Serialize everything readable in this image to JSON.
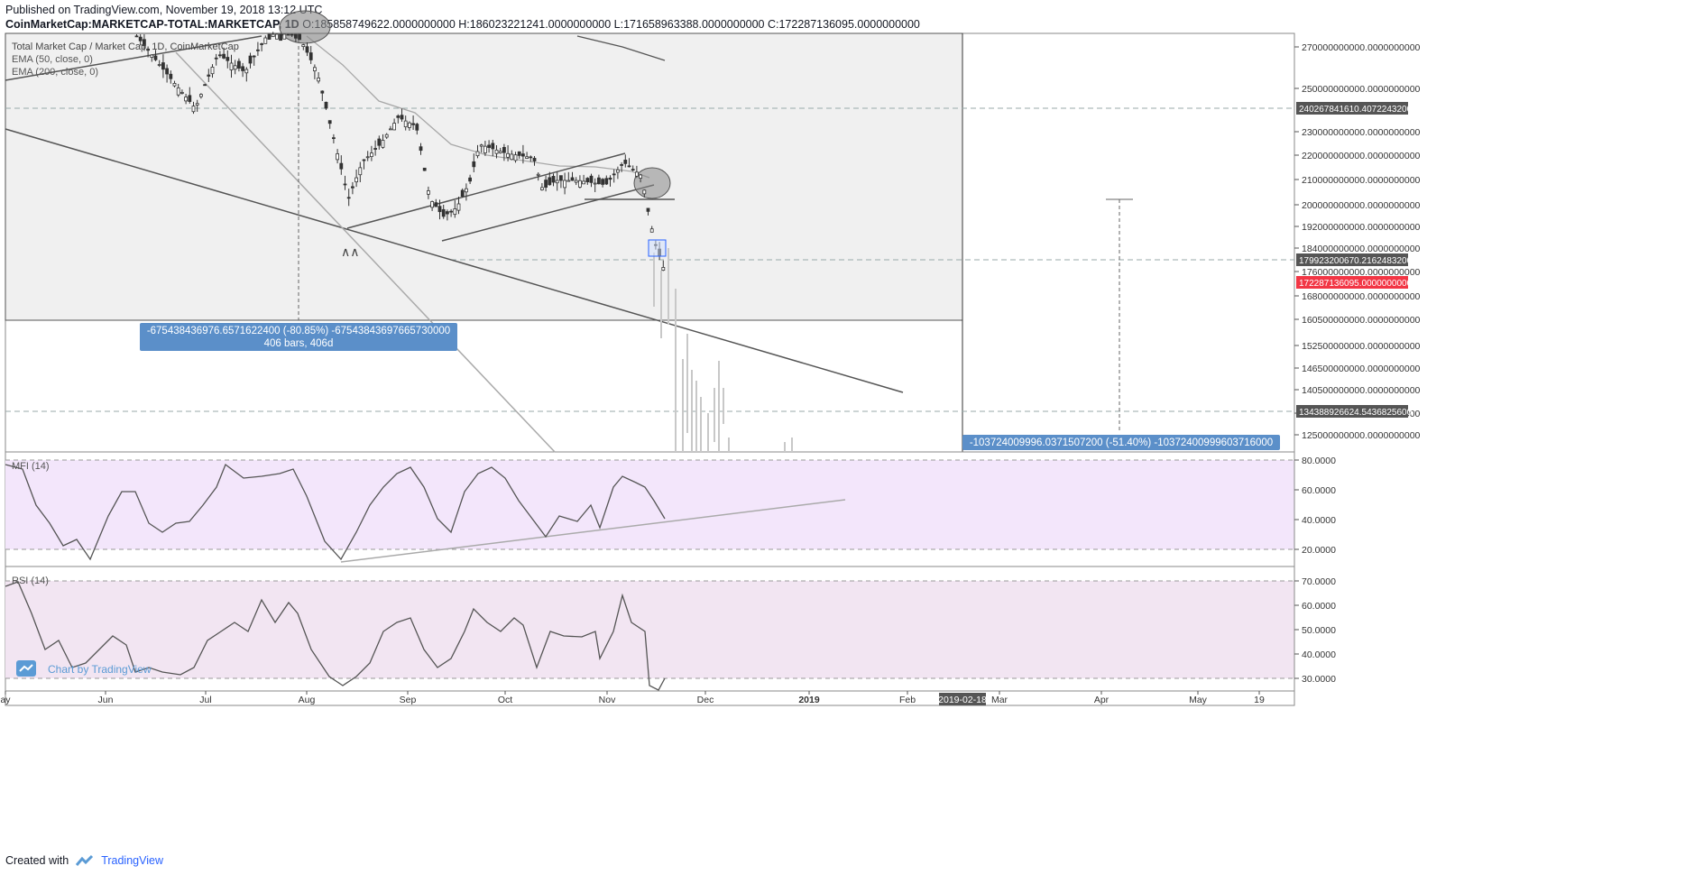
{
  "header": {
    "published": "Published on TradingView.com, November 19, 2018 13:12 UTC",
    "symbol": "CoinMarketCap:MARKETCAP-TOTAL:MARKETCAP, 1D",
    "ohlc": "O:185858749622.0000000000 H:186023221241.0000000000 L:171658963388.0000000000 C:172287136095.0000000000"
  },
  "legend": {
    "title": "Total Market Cap / Market Cap, 1D, CoinMarketCap",
    "ema50": "EMA (50, close, 0)",
    "ema200": "EMA (200, close, 0)"
  },
  "price_axis": {
    "ticks": [
      "270000000000.0000000000",
      "250000000000.0000000000",
      "230000000000.0000000000",
      "220000000000.0000000000",
      "210000000000.0000000000",
      "200000000000.0000000000",
      "192000000000.0000000000",
      "184000000000.0000000000",
      "176000000000.0000000000",
      "168000000000.0000000000",
      "160500000000.0000000000",
      "152500000000.0000000000",
      "146500000000.0000000000",
      "140500000000.0000000000",
      "132500000000.0000000000",
      "125000000000.0000000000"
    ],
    "labels": [
      {
        "text": "240267841610.4072243200",
        "kind": "level"
      },
      {
        "text": "179923200670.2162483200",
        "kind": "level"
      },
      {
        "text": "172287136095.0000000000",
        "kind": "last"
      },
      {
        "text": "134388926624.5436825600",
        "kind": "level"
      }
    ]
  },
  "measure_boxes": {
    "left": {
      "line1": "-675438436976.6571622400 (-80.85%) -675438436976657 30000",
      "line1_exact": "-675438436976.6571622400 (-80.85%) -67543843697665730000",
      "line2": "406 bars, 406d"
    },
    "right": {
      "line1": "-103724009996.0371507200 (-51.40%) -10372400999603716000"
    }
  },
  "mfi": {
    "label": "MFI (14)",
    "ticks": [
      "80.0000",
      "60.0000",
      "40.0000",
      "20.0000"
    ]
  },
  "rsi": {
    "label": "RSI (14)",
    "ticks": [
      "70.0000",
      "60.0000",
      "50.0000",
      "40.0000",
      "30.0000"
    ]
  },
  "time_axis": {
    "labels": [
      "ay",
      "Jun",
      "Jul",
      "Aug",
      "Sep",
      "Oct",
      "Nov",
      "Dec",
      "2019",
      "Feb",
      "2019-02-18",
      "Mar",
      "Apr",
      "May",
      "19"
    ]
  },
  "watermark": "Chart by TradingView",
  "footer": {
    "created": "Created with",
    "brand": "TradingView"
  },
  "colors": {
    "last_price": "#f23645",
    "measure": "#5b8fc9",
    "mfi_bg": "#f3e5f5",
    "rsi_bg": "#f1e4f0",
    "line": "#555555"
  },
  "chart_data": {
    "type": "candlestick",
    "title": "Total Market Cap / Market Cap, 1D, CoinMarketCap",
    "interval": "1D",
    "last_close": 172287136095,
    "approx_close_series": {
      "dates": [
        "Jun",
        "Jul",
        "Aug",
        "Sep",
        "Oct",
        "Nov",
        "Nov 19"
      ],
      "values": [
        270000000000,
        275000000000,
        250000000000,
        198000000000,
        218000000000,
        208000000000,
        172287136095
      ]
    },
    "indicators": [
      "EMA (50, close, 0)",
      "EMA (200, close, 0)",
      "MFI (14)",
      "RSI (14)"
    ]
  }
}
